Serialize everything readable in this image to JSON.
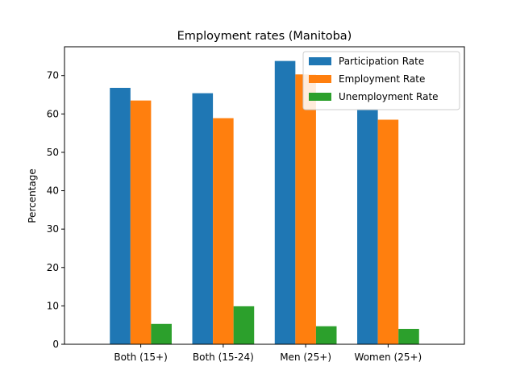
{
  "chart_data": {
    "type": "bar",
    "title": "Employment rates (Manitoba)",
    "xlabel": "",
    "ylabel": "Percentage",
    "categories": [
      "Both (15+)",
      "Both (15-24)",
      "Men (25+)",
      "Women (25+)"
    ],
    "series": [
      {
        "name": "Participation Rate",
        "color": "#1f77b4",
        "values": [
          66.8,
          65.4,
          73.8,
          61.0
        ]
      },
      {
        "name": "Employment Rate",
        "color": "#ff7f0e",
        "values": [
          63.5,
          58.9,
          70.3,
          58.5
        ]
      },
      {
        "name": "Unemployment Rate",
        "color": "#2ca02c",
        "values": [
          5.3,
          9.9,
          4.7,
          4.0
        ]
      }
    ],
    "ylim": [
      0,
      77.5
    ],
    "yticks": [
      0,
      10,
      20,
      30,
      40,
      50,
      60,
      70
    ],
    "grid": false,
    "legend_position": "top-right"
  }
}
